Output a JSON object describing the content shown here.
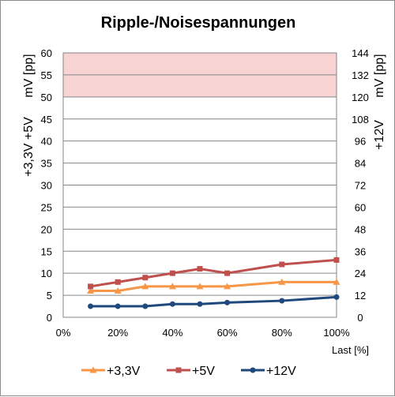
{
  "chart_data": {
    "type": "line",
    "title": "Ripple-/Noisespannungen",
    "xlabel": "Last [%]",
    "x_ticks": [
      "0%",
      "20%",
      "40%",
      "60%",
      "80%",
      "100%"
    ],
    "xlim": [
      0,
      100
    ],
    "y_left_label_top": "mV [pp]",
    "y_left_label_bottom": "+3,3V +5V",
    "y_right_label_top": "mV [pp]",
    "y_right_label_bottom": "+12V",
    "ylim_left": [
      0,
      60
    ],
    "ylim_right": [
      0,
      144
    ],
    "y_left_ticks": [
      "0",
      "5",
      "10",
      "15",
      "20",
      "25",
      "30",
      "35",
      "40",
      "45",
      "50",
      "55",
      "60"
    ],
    "y_right_ticks": [
      "0",
      "12",
      "24",
      "36",
      "48",
      "60",
      "72",
      "84",
      "96",
      "108",
      "120",
      "132",
      "144"
    ],
    "grid": true,
    "limit_band": {
      "from": 50,
      "to": 60,
      "axis": "left",
      "color": "#f7d3d3"
    },
    "legend_position": "bottom",
    "x": [
      10,
      20,
      30,
      40,
      50,
      60,
      80,
      100
    ],
    "series": [
      {
        "name": "+3,3V",
        "axis": "left",
        "color": "#f79646",
        "marker": "triangle",
        "values": [
          6,
          6,
          7,
          7,
          7,
          7,
          8,
          8
        ]
      },
      {
        "name": "+5V",
        "axis": "left",
        "color": "#c0504d",
        "marker": "square",
        "values": [
          7,
          8,
          9,
          10,
          11,
          10,
          12,
          13
        ]
      },
      {
        "name": "+12V",
        "axis": "right",
        "color": "#1f497d",
        "marker": "circle",
        "values": [
          6,
          6,
          6,
          7.2,
          7.2,
          8,
          9,
          11
        ]
      }
    ]
  }
}
